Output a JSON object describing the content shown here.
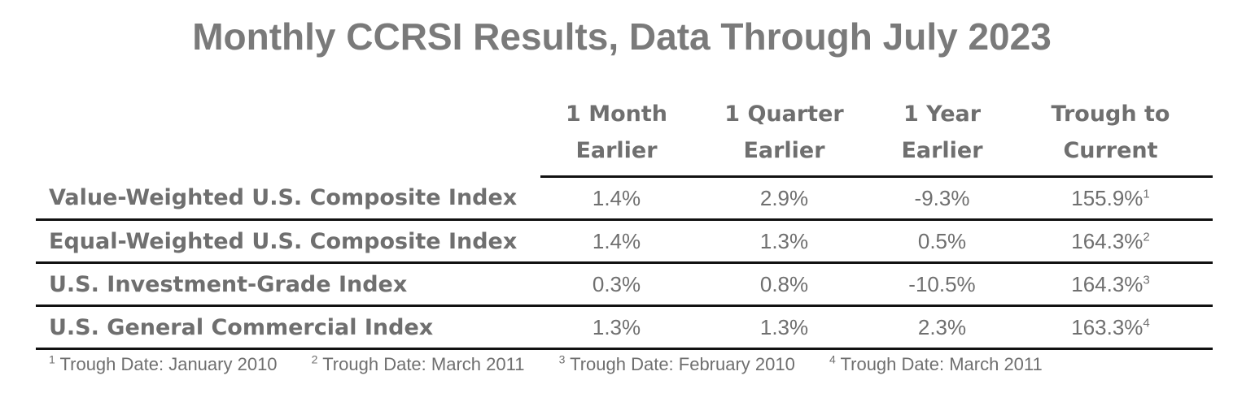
{
  "title": "Monthly CCRSI Results, Data Through July 2023",
  "table": {
    "columns": [
      {
        "line1": "1 Month",
        "line2": "Earlier"
      },
      {
        "line1": "1 Quarter",
        "line2": "Earlier"
      },
      {
        "line1": "1 Year",
        "line2": "Earlier"
      },
      {
        "line1": "Trough to",
        "line2": "Current"
      }
    ],
    "rows": [
      {
        "label": "Value-Weighted U.S. Composite Index",
        "month": "1.4%",
        "quarter": "2.9%",
        "year": "-9.3%",
        "trough": "155.9%",
        "trough_note": "1"
      },
      {
        "label": "Equal-Weighted U.S. Composite Index",
        "month": "1.4%",
        "quarter": "1.3%",
        "year": "0.5%",
        "trough": "164.3%",
        "trough_note": "2"
      },
      {
        "label": "U.S. Investment-Grade Index",
        "month": "0.3%",
        "quarter": "0.8%",
        "year": "-10.5%",
        "trough": "164.3%",
        "trough_note": "3"
      },
      {
        "label": "U.S. General Commercial Index",
        "month": "1.3%",
        "quarter": "1.3%",
        "year": "2.3%",
        "trough": "163.3%",
        "trough_note": "4"
      }
    ]
  },
  "footnotes": [
    {
      "mark": "1",
      "text": "Trough Date: January 2010"
    },
    {
      "mark": "2",
      "text": "Trough Date: March 2011"
    },
    {
      "mark": "3",
      "text": "Trough Date: February 2010"
    },
    {
      "mark": "4",
      "text": "Trough Date: March 2011"
    }
  ]
}
